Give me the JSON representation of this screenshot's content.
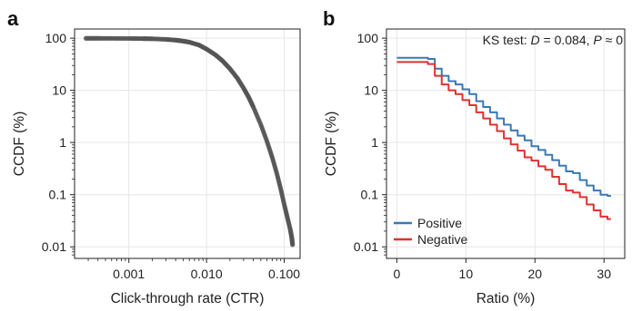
{
  "chart_data": [
    {
      "type": "scatter",
      "panel_label": "a",
      "xlabel": "Click-through rate (CTR)",
      "ylabel": "CCDF (%)",
      "x_scale": "log",
      "y_scale": "log",
      "xlim": [
        0.0002,
        0.16
      ],
      "ylim": [
        0.006,
        150
      ],
      "x_ticks": [
        {
          "value": 0.001,
          "label": "0.001"
        },
        {
          "value": 0.01,
          "label": "0.010"
        },
        {
          "value": 0.1,
          "label": "0.100"
        }
      ],
      "y_ticks": [
        {
          "value": 100,
          "label": "100"
        },
        {
          "value": 10,
          "label": "10"
        },
        {
          "value": 1,
          "label": "1"
        },
        {
          "value": 0.1,
          "label": "0.1"
        },
        {
          "value": 0.01,
          "label": "0.01"
        }
      ],
      "grid": true,
      "series": [
        {
          "color": "#555555",
          "x": [
            0.00028,
            0.0004,
            0.0006,
            0.001,
            0.0015,
            0.002,
            0.003,
            0.004,
            0.005,
            0.006,
            0.008,
            0.01,
            0.013,
            0.016,
            0.02,
            0.025,
            0.03,
            0.035,
            0.04,
            0.05,
            0.06,
            0.07,
            0.08,
            0.09,
            0.1,
            0.11,
            0.12,
            0.125,
            0.128
          ],
          "y": [
            99.5,
            99.4,
            99.2,
            98.8,
            98.2,
            97.5,
            95.0,
            92.0,
            88.0,
            84.0,
            74.0,
            62.0,
            48.0,
            37.0,
            26.0,
            17.0,
            11.0,
            7.3,
            4.8,
            2.2,
            1.05,
            0.52,
            0.26,
            0.13,
            0.065,
            0.036,
            0.021,
            0.015,
            0.011
          ]
        }
      ]
    },
    {
      "type": "line",
      "panel_label": "b",
      "xlabel": "Ratio (%)",
      "ylabel": "CCDF (%)",
      "x_scale": "linear",
      "y_scale": "log",
      "xlim": [
        -1.5,
        33
      ],
      "ylim": [
        0.006,
        150
      ],
      "x_ticks": [
        {
          "value": 0,
          "label": "0"
        },
        {
          "value": 10,
          "label": "10"
        },
        {
          "value": 20,
          "label": "20"
        },
        {
          "value": 30,
          "label": "30"
        }
      ],
      "y_ticks": [
        {
          "value": 100,
          "label": "100"
        },
        {
          "value": 10,
          "label": "10"
        },
        {
          "value": 1,
          "label": "1"
        },
        {
          "value": 0.1,
          "label": "0.1"
        },
        {
          "value": 0.01,
          "label": "0.01"
        }
      ],
      "grid": true,
      "annotation": {
        "prefix": "KS test: ",
        "d_symbol": "D",
        "d_text": " = 0.084, ",
        "p_symbol": "P",
        "p_text": " ≈ 0"
      },
      "legend_position": "bottom-left",
      "series": [
        {
          "name": "Positive",
          "color": "#3a78b5",
          "x": [
            0,
            1,
            2,
            3,
            4,
            5,
            6,
            7,
            8,
            9,
            10,
            11,
            12,
            13,
            14,
            15,
            16,
            17,
            18,
            19,
            20,
            21,
            22,
            23,
            24,
            25,
            26,
            27,
            28,
            29,
            30,
            31
          ],
          "y": [
            42,
            42,
            42,
            42,
            42,
            40,
            26,
            19,
            15,
            13,
            10.5,
            8.5,
            6.2,
            4.8,
            3.8,
            2.9,
            2.2,
            1.7,
            1.35,
            1.1,
            0.85,
            0.72,
            0.58,
            0.46,
            0.36,
            0.28,
            0.26,
            0.19,
            0.15,
            0.12,
            0.1,
            0.095
          ]
        },
        {
          "name": "Negative",
          "color": "#e03131",
          "x": [
            0,
            1,
            2,
            3,
            4,
            5,
            6,
            7,
            8,
            9,
            10,
            11,
            12,
            13,
            14,
            15,
            16,
            17,
            18,
            19,
            20,
            21,
            22,
            23,
            24,
            25,
            26,
            27,
            28,
            29,
            30,
            31
          ],
          "y": [
            35,
            35,
            35,
            35,
            35,
            32,
            19,
            13,
            10,
            8.5,
            6.5,
            5.2,
            3.8,
            2.9,
            2.2,
            1.65,
            1.2,
            0.92,
            0.7,
            0.52,
            0.45,
            0.35,
            0.3,
            0.22,
            0.16,
            0.12,
            0.11,
            0.09,
            0.065,
            0.05,
            0.038,
            0.034
          ]
        }
      ]
    }
  ]
}
